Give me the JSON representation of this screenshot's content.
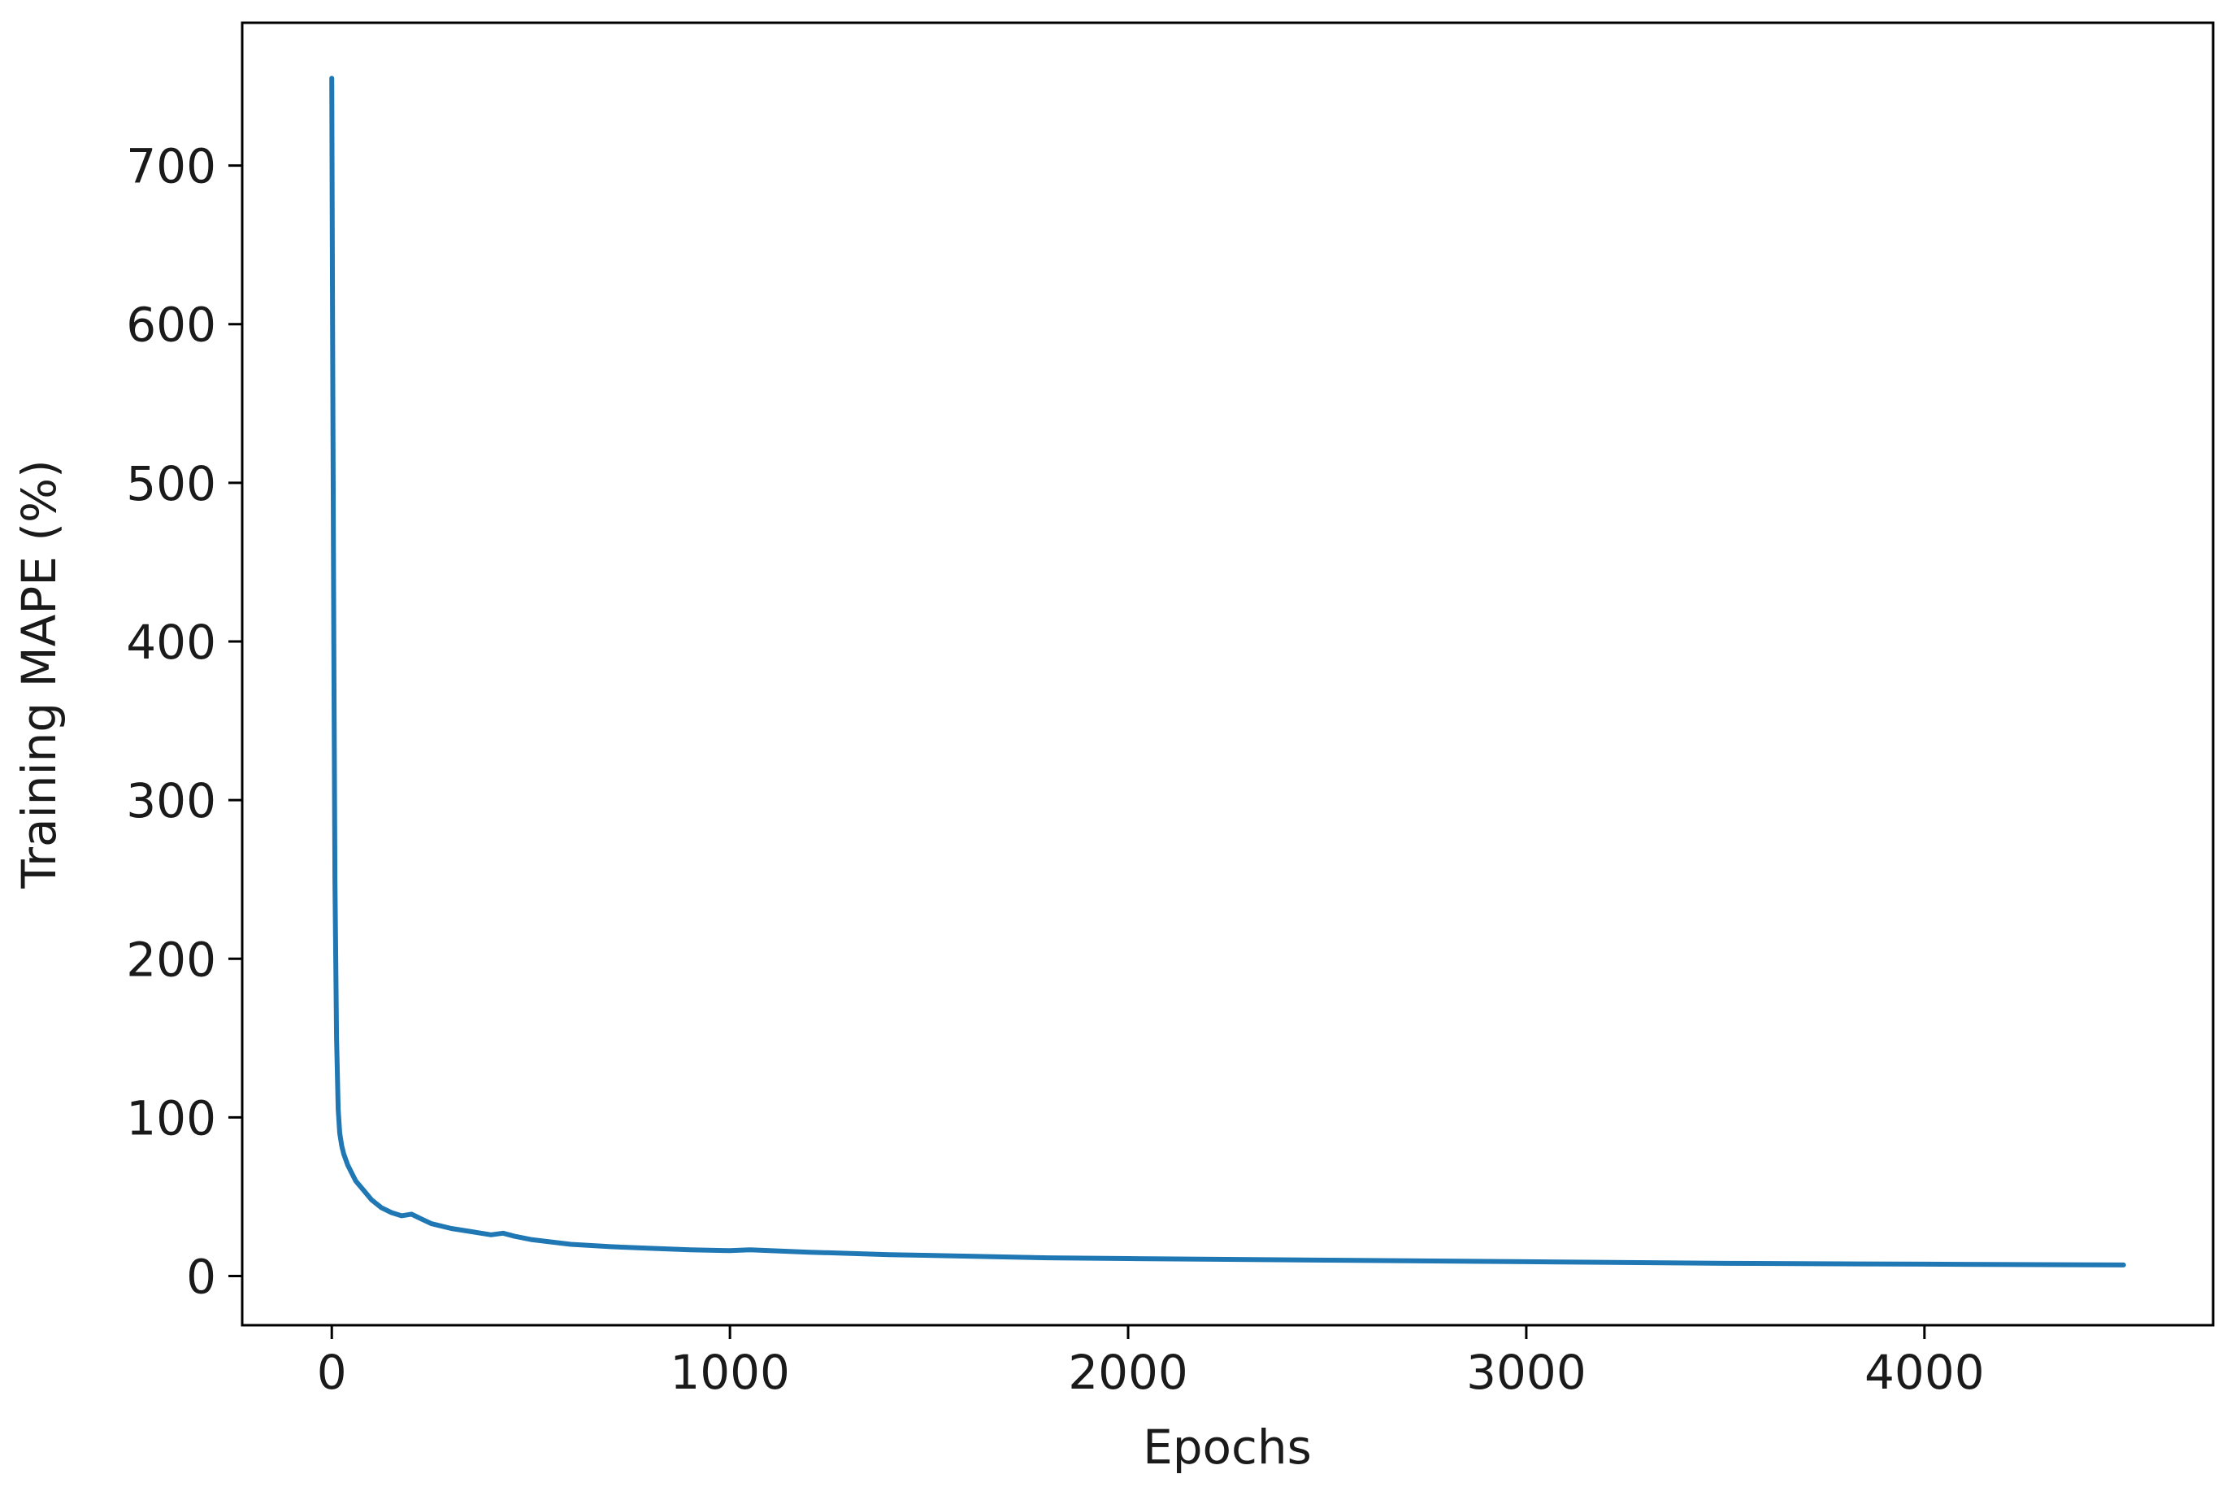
{
  "chart_data": {
    "type": "line",
    "title": "",
    "xlabel": "Epochs",
    "ylabel": "Training MAPE (%)",
    "xlim": [
      -225,
      4725
    ],
    "ylim": [
      -31,
      790
    ],
    "x_ticks": [
      0,
      1000,
      2000,
      3000,
      4000
    ],
    "x_tick_labels": [
      "0",
      "1000",
      "2000",
      "3000",
      "4000"
    ],
    "y_ticks": [
      0,
      100,
      200,
      300,
      400,
      500,
      600,
      700
    ],
    "y_tick_labels": [
      "0",
      "100",
      "200",
      "300",
      "400",
      "500",
      "600",
      "700"
    ],
    "grid": false,
    "legend": "none",
    "series": [
      {
        "color": "#1f77b4",
        "x": [
          0,
          2,
          5,
          8,
          12,
          16,
          20,
          25,
          30,
          40,
          50,
          60,
          80,
          100,
          125,
          150,
          175,
          200,
          225,
          250,
          300,
          350,
          400,
          430,
          460,
          500,
          600,
          700,
          800,
          900,
          1000,
          1050,
          1100,
          1200,
          1400,
          1600,
          1800,
          2000,
          2500,
          3000,
          3500,
          4000,
          4500
        ],
        "y": [
          755,
          600,
          400,
          250,
          150,
          105,
          90,
          82,
          77,
          70,
          65,
          60,
          54,
          48,
          43,
          40,
          38,
          39,
          36,
          33,
          30,
          28,
          26,
          27,
          25,
          23,
          20,
          18.5,
          17.5,
          16.5,
          16,
          16.5,
          16,
          15,
          13.5,
          12.5,
          11.5,
          11,
          10,
          9,
          8,
          7.5,
          7
        ]
      }
    ]
  }
}
